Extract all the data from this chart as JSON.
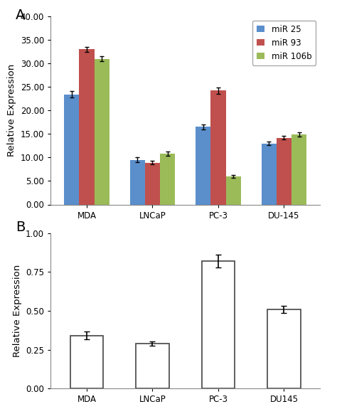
{
  "panel_A": {
    "categories": [
      "MDA",
      "LNCaP",
      "PC-3",
      "DU-145"
    ],
    "series": {
      "miR 25": [
        23.4,
        9.5,
        16.5,
        13.0
      ],
      "miR 93": [
        33.0,
        8.9,
        24.2,
        14.2
      ],
      "miR 106b": [
        31.0,
        10.8,
        6.0,
        14.9
      ]
    },
    "errors": {
      "miR 25": [
        0.7,
        0.5,
        0.5,
        0.4
      ],
      "miR 93": [
        0.5,
        0.4,
        0.7,
        0.4
      ],
      "miR 106b": [
        0.5,
        0.4,
        0.3,
        0.4
      ]
    },
    "colors": {
      "miR 25": "#5B8FCC",
      "miR 93": "#C0504D",
      "miR 106b": "#9BBB59"
    },
    "ylabel": "Relative Expression",
    "ylim": [
      0,
      40
    ],
    "yticks": [
      0.0,
      5.0,
      10.0,
      15.0,
      20.0,
      25.0,
      30.0,
      35.0,
      40.0
    ],
    "panel_label": "A"
  },
  "panel_B": {
    "categories": [
      "MDA",
      "LNCaP",
      "PC-3",
      "DU145"
    ],
    "values": [
      0.34,
      0.29,
      0.82,
      0.51
    ],
    "errors": [
      0.025,
      0.015,
      0.04,
      0.022
    ],
    "bar_color": "#ffffff",
    "edge_color": "#444444",
    "ylabel": "Relative Expression",
    "ylim": [
      0,
      1.0
    ],
    "yticks": [
      0.0,
      0.25,
      0.5,
      0.75,
      1.0
    ],
    "panel_label": "B"
  },
  "figure_bg": "#ffffff"
}
